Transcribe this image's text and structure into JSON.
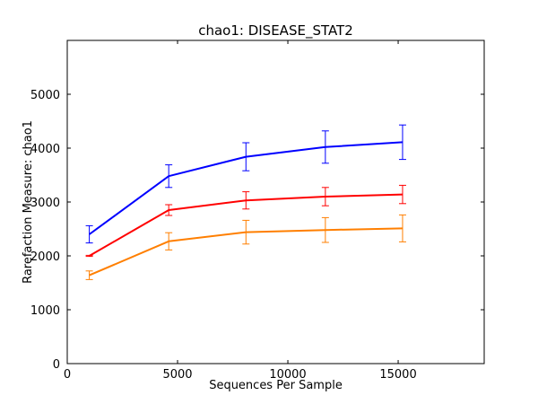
{
  "chart_data": {
    "type": "line",
    "title": "chao1: DISEASE_STAT2",
    "xlabel": "Sequences Per Sample",
    "ylabel": "Rarefaction Measure: chao1",
    "xlim": [
      0,
      18900
    ],
    "ylim": [
      0,
      6000
    ],
    "xticks": [
      0,
      5000,
      10000,
      15000
    ],
    "yticks": [
      0,
      1000,
      2000,
      3000,
      4000,
      5000
    ],
    "grid": false,
    "x": [
      1000,
      4600,
      8100,
      11700,
      15200
    ],
    "series": [
      {
        "color": "#0000ff",
        "values": [
          2400,
          3480,
          3840,
          4020,
          4110
        ],
        "errors": [
          160,
          210,
          260,
          300,
          320
        ]
      },
      {
        "color": "#ff0000",
        "values": [
          2000,
          2850,
          3030,
          3100,
          3140
        ],
        "errors": [
          10,
          100,
          160,
          170,
          170
        ]
      },
      {
        "color": "#ff7f00",
        "values": [
          1640,
          2270,
          2440,
          2480,
          2510
        ],
        "errors": [
          80,
          160,
          220,
          230,
          250
        ]
      }
    ]
  }
}
